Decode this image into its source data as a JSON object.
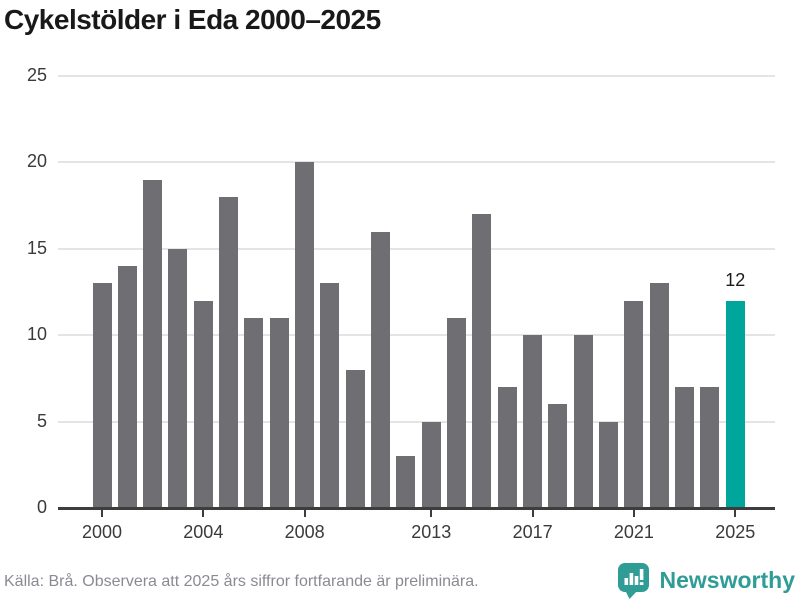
{
  "title": "Cykelstölder i Eda 2000–2025",
  "chart_data": {
    "type": "bar",
    "title": "Cykelstölder i Eda 2000–2025",
    "categories": [
      2000,
      2001,
      2002,
      2003,
      2004,
      2005,
      2006,
      2007,
      2008,
      2009,
      2010,
      2011,
      2012,
      2013,
      2014,
      2015,
      2016,
      2017,
      2018,
      2019,
      2020,
      2021,
      2022,
      2023,
      2024,
      2025
    ],
    "values": [
      13,
      14,
      19,
      15,
      12,
      18,
      11,
      11,
      20,
      13,
      8,
      16,
      3,
      5,
      11,
      17,
      7,
      10,
      6,
      10,
      5,
      12,
      13,
      7,
      7,
      12
    ],
    "xlabel": "",
    "ylabel": "",
    "ylim": [
      0,
      25
    ],
    "yticks": [
      0,
      5,
      10,
      15,
      20,
      25
    ],
    "xtick_years": [
      2000,
      2004,
      2008,
      2013,
      2017,
      2021,
      2025
    ],
    "grid": true,
    "legend": "none",
    "highlight": {
      "year": 2025,
      "value_label": "12"
    },
    "colors": {
      "bar": "#6E6E73",
      "highlight": "#00A59C"
    }
  },
  "footer": {
    "source": "Källa: Brå. Observera att 2025 års siffror fortfarande är preliminära.",
    "brand": "Newsworthy",
    "brand_color": "#2F9C96"
  }
}
